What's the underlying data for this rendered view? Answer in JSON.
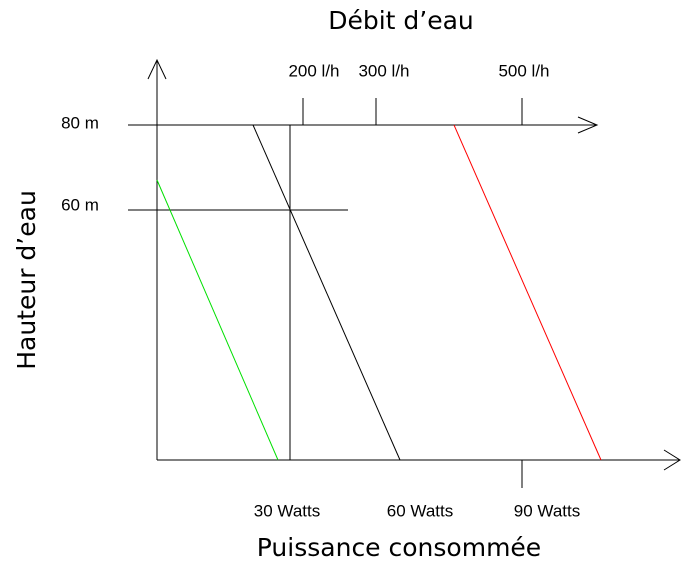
{
  "top_axis": {
    "title": "Débit d’eau",
    "ticks": [
      "200 l/h",
      "300 l/h",
      "500 l/h"
    ]
  },
  "left_axis": {
    "title": "Hauteur d’eau",
    "ticks": [
      "80 m",
      "60 m"
    ]
  },
  "bottom_axis": {
    "title": "Puissance consommée",
    "ticks": [
      "30 Watts",
      "60 Watts",
      "90 Watts"
    ]
  }
}
